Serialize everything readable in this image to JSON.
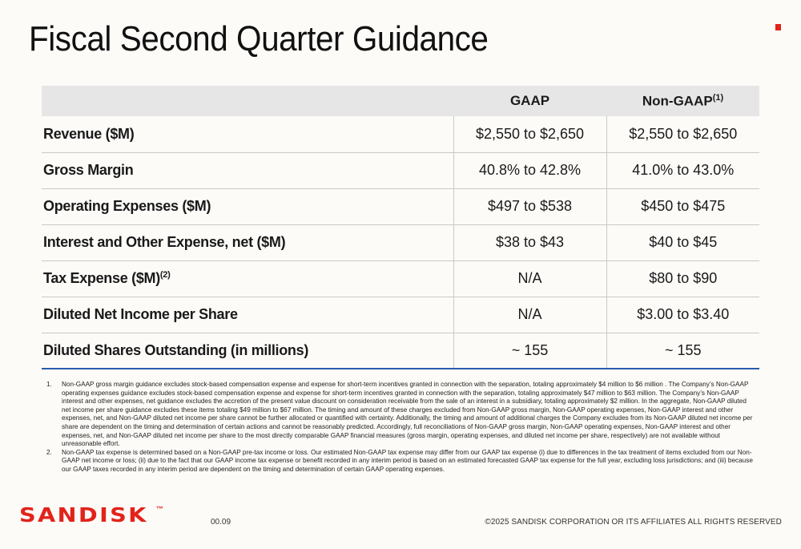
{
  "title": "Fiscal Second Quarter Guidance",
  "colors": {
    "brand_red": "#e2231a",
    "header_fill": "#e6e6e6",
    "rule_blue": "#2a5caa"
  },
  "table": {
    "headers": {
      "gaap": "GAAP",
      "non_gaap": "Non-GAAP",
      "non_gaap_note": "(1)"
    },
    "rows": [
      {
        "label": "Revenue ($M)",
        "note": "",
        "gaap": "$2,550 to $2,650",
        "non_gaap": "$2,550 to $2,650"
      },
      {
        "label": "Gross Margin",
        "note": "",
        "gaap": "40.8% to 42.8%",
        "non_gaap": "41.0% to 43.0%"
      },
      {
        "label": "Operating Expenses ($M)",
        "note": "",
        "gaap": "$497 to $538",
        "non_gaap": "$450 to $475"
      },
      {
        "label": "Interest and Other Expense, net ($M)",
        "note": "",
        "gaap": "$38 to $43",
        "non_gaap": "$40 to $45"
      },
      {
        "label": "Tax Expense ($M)",
        "note": "(2)",
        "gaap": "N/A",
        "non_gaap": "$80 to $90"
      },
      {
        "label": "Diluted Net Income per Share",
        "note": "",
        "gaap": "N/A",
        "non_gaap": "$3.00 to $3.40"
      },
      {
        "label": "Diluted Shares Outstanding (in millions)",
        "note": "",
        "gaap": "~ 155",
        "non_gaap": "~ 155"
      }
    ]
  },
  "footnotes": [
    {
      "num": "1.",
      "text": "Non-GAAP gross margin guidance excludes stock-based compensation expense and expense for short-term incentives granted in connection with the separation, totaling approximately $4 million to $6 million . The Company’s Non-GAAP operating expenses guidance excludes stock-based compensation expense and expense for short-term incentives granted in connection with the separation, totaling approximately $47 million to $63 million. The Company’s Non-GAAP interest and other expenses, net guidance excludes the accretion of the present value discount on consideration receivable from the sale of an interest in a subsidiary, totaling approximately $2 million. In the aggregate, Non-GAAP diluted net income per share guidance excludes these items totaling $49 million to $67 million. The timing and amount of these charges excluded from Non-GAAP gross margin, Non-GAAP operating expenses, Non-GAAP interest and other expenses, net, and Non-GAAP diluted net income per share cannot be further allocated or quantified with certainty. Additionally, the timing and amount of additional charges the Company excludes from its Non-GAAP diluted net income per share are dependent on the timing and determination of certain actions and cannot be reasonably predicted. Accordingly, full reconciliations of Non-GAAP gross margin, Non-GAAP operating expenses, Non-GAAP interest and other expenses, net, and Non-GAAP diluted net income per share to the most directly comparable GAAP financial measures (gross margin, operating expenses, and diluted net income per share, respectively) are not available without unreasonable effort."
    },
    {
      "num": "2.",
      "text": "Non-GAAP tax expense is determined based on a Non-GAAP pre-tax income or loss. Our estimated Non-GAAP tax expense may differ from our GAAP tax expense (i) due to differences in the tax treatment of items excluded from our Non-GAAP net income or loss; (ii) due to the fact that our GAAP income tax expense or benefit recorded in any interim period is based on an estimated forecasted GAAP tax expense for the full year, excluding loss jurisdictions; and (iii) because our GAAP taxes recorded in any interim period are dependent on the timing and determination of certain GAAP operating expenses."
    }
  ],
  "footer": {
    "logo_text": "SANDISK",
    "logo_tm": "™",
    "page_number": "00.09",
    "copyright": "©2025 SANDISK CORPORATION OR ITS AFFILIATES ALL RIGHTS RESERVED"
  }
}
